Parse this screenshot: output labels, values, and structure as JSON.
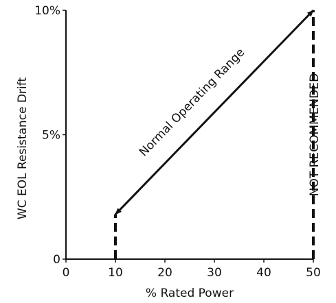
{
  "chart_data": {
    "type": "line",
    "title": "",
    "xlabel": "% Rated Power",
    "ylabel": "WC EOL Resistance Drift",
    "xlim": [
      0,
      50
    ],
    "ylim": [
      0,
      10
    ],
    "x_ticks": [
      0,
      10,
      20,
      30,
      40,
      50
    ],
    "x_tick_labels": [
      "0",
      "10",
      "20",
      "30",
      "40",
      "50"
    ],
    "y_ticks": [
      0,
      5,
      10
    ],
    "y_tick_labels": [
      "0",
      "5%",
      "10%"
    ],
    "series": [
      {
        "x": [
          10,
          50
        ],
        "y": [
          1.8,
          10
        ],
        "style": "solid",
        "arrows": "both"
      }
    ],
    "dashed_verticals": [
      {
        "x": 10,
        "y": [
          0,
          1.8
        ]
      },
      {
        "x": 50,
        "y": [
          0,
          10
        ]
      }
    ],
    "annotations": [
      {
        "text": "Normal Operating Range",
        "x": 26,
        "y": 6.2
      },
      {
        "text": "NOT RECOMMENDED",
        "x": 51,
        "y": 5
      }
    ],
    "grid": false,
    "legend": "none",
    "colors": {
      "line": "#111111"
    }
  }
}
